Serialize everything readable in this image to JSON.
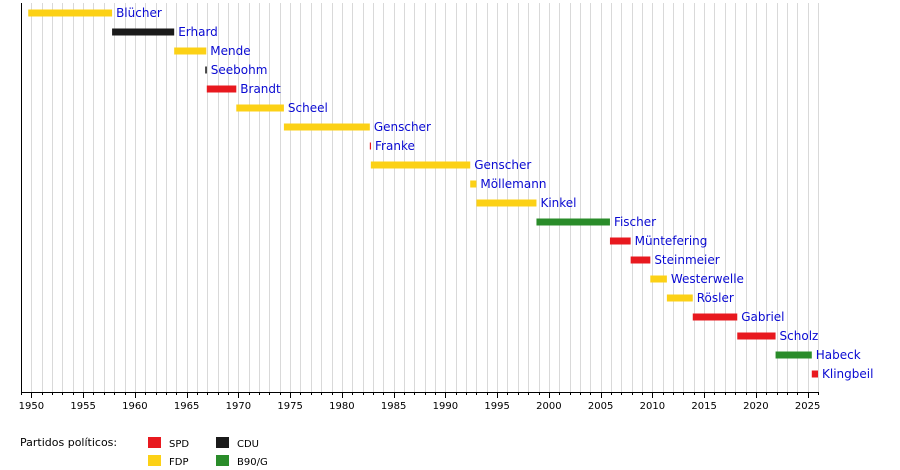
{
  "chart_data": {
    "type": "timeline",
    "x_range": [
      1949,
      2026
    ],
    "x_ticks": [
      1950,
      1955,
      1960,
      1965,
      1970,
      1975,
      1980,
      1985,
      1990,
      1995,
      2000,
      2005,
      2010,
      2015,
      2020,
      2025
    ],
    "grid": "vertical, yearly",
    "party_colors": {
      "SPD": "#e8191f",
      "CDU": "#1a1a1a",
      "FDP": "#fcd116",
      "B90/G": "#2a8c2a"
    },
    "entries": [
      {
        "name": "Blücher",
        "party": "FDP",
        "start": 1949.7,
        "end": 1957.8
      },
      {
        "name": "Erhard",
        "party": "CDU",
        "start": 1957.8,
        "end": 1963.8
      },
      {
        "name": "Mende",
        "party": "FDP",
        "start": 1963.8,
        "end": 1966.9
      },
      {
        "name": "Seebohm",
        "party": "CDU",
        "start": 1966.8,
        "end": 1966.95
      },
      {
        "name": "Brandt",
        "party": "SPD",
        "start": 1966.95,
        "end": 1969.8
      },
      {
        "name": "Scheel",
        "party": "FDP",
        "start": 1969.8,
        "end": 1974.4
      },
      {
        "name": "Genscher",
        "party": "FDP",
        "start": 1974.4,
        "end": 1982.7
      },
      {
        "name": "Franke",
        "party": "SPD",
        "start": 1982.7,
        "end": 1982.8
      },
      {
        "name": "Genscher",
        "party": "FDP",
        "start": 1982.8,
        "end": 1992.4
      },
      {
        "name": "Möllemann",
        "party": "FDP",
        "start": 1992.4,
        "end": 1993.0
      },
      {
        "name": "Kinkel",
        "party": "FDP",
        "start": 1993.0,
        "end": 1998.8
      },
      {
        "name": "Fischer",
        "party": "B90/G",
        "start": 1998.8,
        "end": 2005.9
      },
      {
        "name": "Müntefering",
        "party": "SPD",
        "start": 2005.9,
        "end": 2007.9
      },
      {
        "name": "Steinmeier",
        "party": "SPD",
        "start": 2007.9,
        "end": 2009.8
      },
      {
        "name": "Westerwelle",
        "party": "FDP",
        "start": 2009.8,
        "end": 2011.4
      },
      {
        "name": "Rösler",
        "party": "FDP",
        "start": 2011.4,
        "end": 2013.9
      },
      {
        "name": "Gabriel",
        "party": "SPD",
        "start": 2013.9,
        "end": 2018.2
      },
      {
        "name": "Scholz",
        "party": "SPD",
        "start": 2018.2,
        "end": 2021.9
      },
      {
        "name": "Habeck",
        "party": "B90/G",
        "start": 2021.9,
        "end": 2025.4
      },
      {
        "name": "Klingbeil",
        "party": "SPD",
        "start": 2025.4,
        "end": 2026.0
      }
    ],
    "legend": {
      "title": "Partidos políticos:",
      "items": [
        {
          "label": "SPD",
          "party": "SPD"
        },
        {
          "label": "FDP",
          "party": "FDP"
        },
        {
          "label": "CDU",
          "party": "CDU"
        },
        {
          "label": "B90/G",
          "party": "B90/G"
        }
      ]
    }
  }
}
